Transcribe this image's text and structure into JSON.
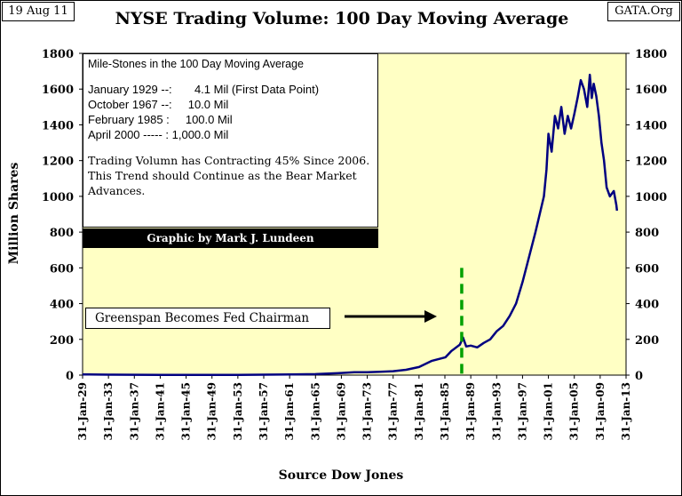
{
  "header": {
    "date": "19 Aug 11",
    "site": "GATA.Org",
    "title": "NYSE Trading Volume: 100 Day Moving Average"
  },
  "milestones": {
    "heading": "Mile-Stones  in the  100 Day Moving  Average",
    "rows": [
      "January 1929 --:       4.1 Mil (First Data Point)",
      "October 1967 --:     10.0 Mil",
      "February 1985 :     100.0 Mil",
      "April 2000 ----- : 1,000.0 Mil"
    ],
    "note": "Trading Volumn has Contracting 45% Since 2006.  This Trend should Continue as the Bear Market Advances.",
    "credit": "Graphic by Mark J. Lundeen"
  },
  "annotation": "Greenspan Becomes Fed Chairman",
  "colors": {
    "plot_bg": "#FFFFC4",
    "series": "#000080",
    "marker": "#00A000",
    "credit_bg": "#000000"
  },
  "chart_data": {
    "type": "line",
    "ylabel": "Million Shares",
    "xlabel": "Source Dow Jones",
    "ylim": [
      0,
      1800
    ],
    "yticks": [
      0,
      200,
      400,
      600,
      800,
      1000,
      1200,
      1400,
      1600,
      1800
    ],
    "xlim": [
      1929,
      2013
    ],
    "xticks": [
      {
        "year": 1929,
        "label": "31-Jan-29"
      },
      {
        "year": 1933,
        "label": "31-Jan-33"
      },
      {
        "year": 1937,
        "label": "31-Jan-37"
      },
      {
        "year": 1941,
        "label": "31-Jan-41"
      },
      {
        "year": 1945,
        "label": "31-Jan-45"
      },
      {
        "year": 1949,
        "label": "31-Jan-49"
      },
      {
        "year": 1953,
        "label": "31-Jan-53"
      },
      {
        "year": 1957,
        "label": "31-Jan-57"
      },
      {
        "year": 1961,
        "label": "31-Jan-61"
      },
      {
        "year": 1965,
        "label": "31-Jan-65"
      },
      {
        "year": 1969,
        "label": "31-Jan-69"
      },
      {
        "year": 1973,
        "label": "31-Jan-73"
      },
      {
        "year": 1977,
        "label": "31-Jan-77"
      },
      {
        "year": 1981,
        "label": "31-Jan-81"
      },
      {
        "year": 1985,
        "label": "31-Jan-85"
      },
      {
        "year": 1989,
        "label": "31-Jan-89"
      },
      {
        "year": 1993,
        "label": "31-Jan-93"
      },
      {
        "year": 1997,
        "label": "31-Jan-97"
      },
      {
        "year": 2001,
        "label": "31-Jan-01"
      },
      {
        "year": 2005,
        "label": "31-Jan-05"
      },
      {
        "year": 2009,
        "label": "31-Jan-09"
      },
      {
        "year": 2013,
        "label": "31-Jan-13"
      }
    ],
    "marker_year": 1987.6,
    "grid": false,
    "series": [
      {
        "points": [
          [
            1929,
            4.1
          ],
          [
            1930,
            3.5
          ],
          [
            1933,
            2.5
          ],
          [
            1937,
            2
          ],
          [
            1941,
            1
          ],
          [
            1945,
            1.5
          ],
          [
            1949,
            1.5
          ],
          [
            1953,
            1.5
          ],
          [
            1957,
            2.5
          ],
          [
            1961,
            4
          ],
          [
            1965,
            5.5
          ],
          [
            1967.8,
            10
          ],
          [
            1969,
            12
          ],
          [
            1971,
            16
          ],
          [
            1973,
            16
          ],
          [
            1975,
            19
          ],
          [
            1977,
            22
          ],
          [
            1979,
            30
          ],
          [
            1981,
            45
          ],
          [
            1983,
            80
          ],
          [
            1985.1,
            100
          ],
          [
            1986,
            135
          ],
          [
            1987.3,
            170
          ],
          [
            1987.8,
            210
          ],
          [
            1988.3,
            160
          ],
          [
            1989,
            165
          ],
          [
            1990,
            155
          ],
          [
            1991,
            180
          ],
          [
            1992,
            200
          ],
          [
            1993,
            245
          ],
          [
            1994,
            275
          ],
          [
            1995,
            330
          ],
          [
            1996,
            400
          ],
          [
            1997,
            520
          ],
          [
            1998,
            660
          ],
          [
            1999,
            800
          ],
          [
            2000.3,
            1000
          ],
          [
            2000.7,
            1150
          ],
          [
            2001,
            1350
          ],
          [
            2001.5,
            1250
          ],
          [
            2002,
            1450
          ],
          [
            2002.5,
            1380
          ],
          [
            2003,
            1500
          ],
          [
            2003.5,
            1350
          ],
          [
            2004,
            1450
          ],
          [
            2004.5,
            1380
          ],
          [
            2005,
            1460
          ],
          [
            2005.5,
            1550
          ],
          [
            2006,
            1650
          ],
          [
            2006.5,
            1600
          ],
          [
            2007,
            1500
          ],
          [
            2007.4,
            1680
          ],
          [
            2007.7,
            1550
          ],
          [
            2008,
            1630
          ],
          [
            2008.4,
            1560
          ],
          [
            2008.8,
            1450
          ],
          [
            2009.2,
            1300
          ],
          [
            2009.6,
            1200
          ],
          [
            2010,
            1050
          ],
          [
            2010.5,
            1000
          ],
          [
            2011.1,
            1030
          ],
          [
            2011.5,
            950
          ],
          [
            2011.6,
            920
          ]
        ]
      }
    ]
  }
}
